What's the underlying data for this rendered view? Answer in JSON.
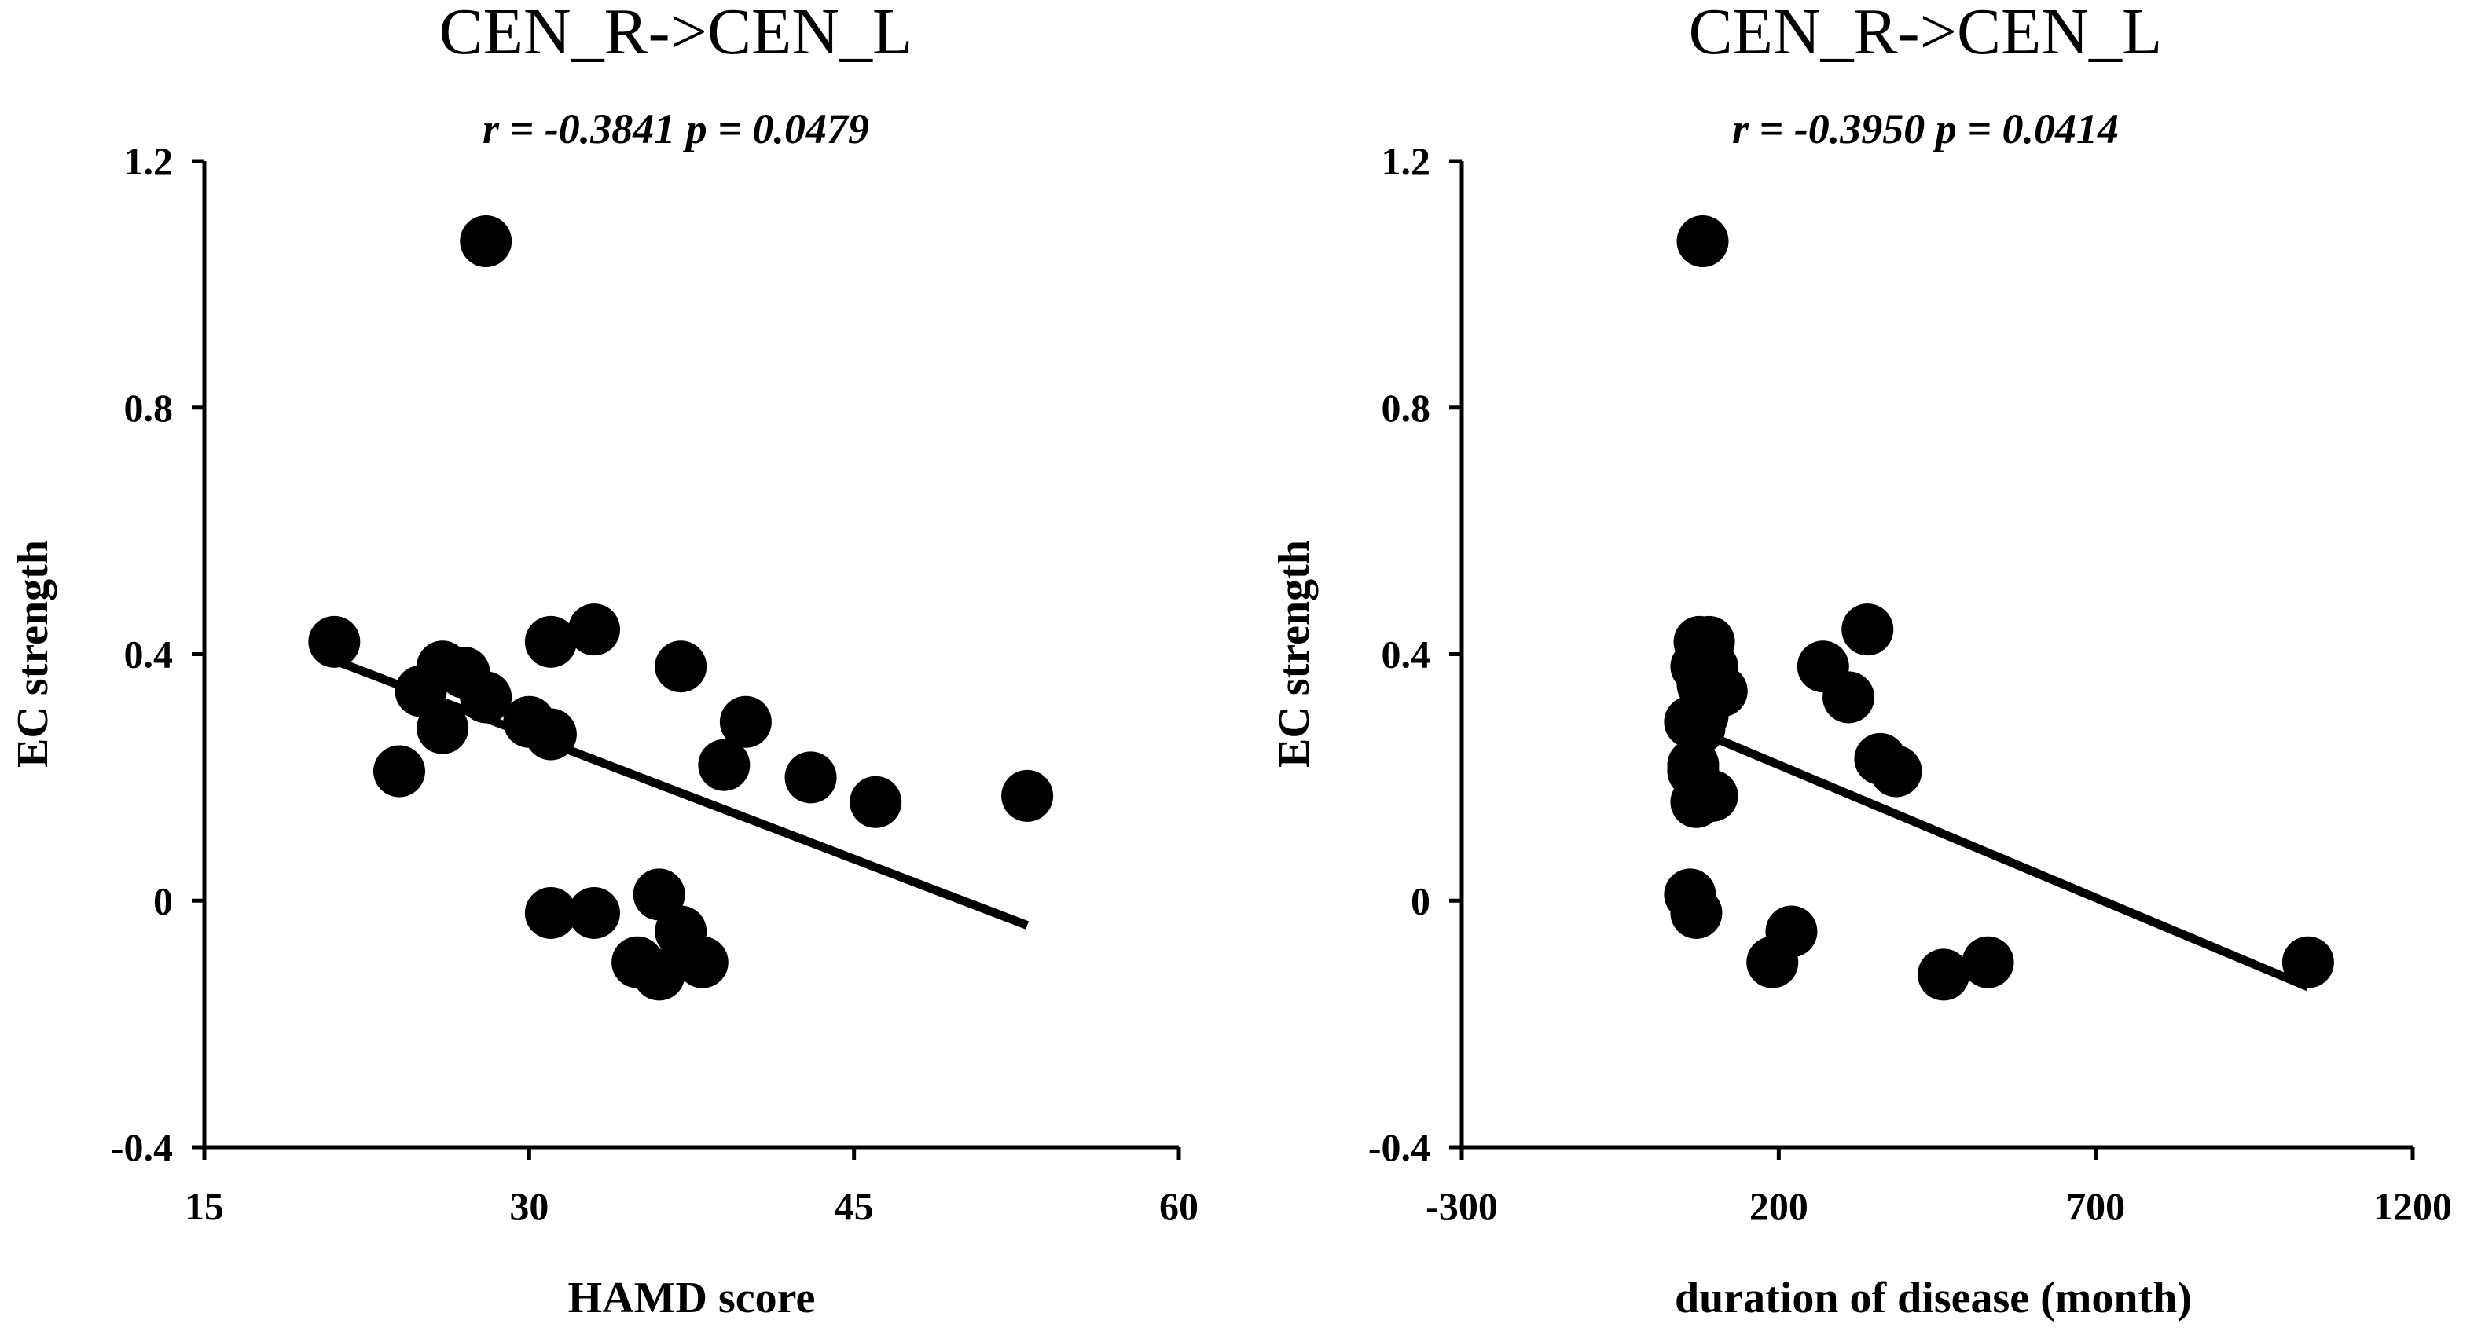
{
  "chart_data": [
    {
      "type": "scatter",
      "title": "CEN_R->CEN_L",
      "subtitle": "r = -0.3841  p = 0.0479",
      "xlabel": "HAMD score",
      "ylabel": "EC strength",
      "xlim": [
        15,
        60
      ],
      "ylim": [
        -0.4,
        1.2
      ],
      "xticks": [
        "15",
        "30",
        "45",
        "60"
      ],
      "yticks": [
        "-0.4",
        "0",
        "0.4",
        "0.8",
        "1.2"
      ],
      "grid": false,
      "x": [
        21,
        28,
        24,
        25,
        26,
        27,
        28,
        26,
        30,
        31,
        31,
        33,
        37,
        40,
        39,
        43,
        46,
        53,
        31,
        33,
        36,
        37,
        35,
        36,
        38
      ],
      "y": [
        0.42,
        1.07,
        0.21,
        0.34,
        0.38,
        0.37,
        0.33,
        0.28,
        0.29,
        0.27,
        0.42,
        0.44,
        0.38,
        0.29,
        0.22,
        0.2,
        0.16,
        0.17,
        -0.02,
        -0.02,
        0.01,
        -0.05,
        -0.1,
        -0.12,
        -0.1
      ],
      "fit_line": {
        "x": [
          21,
          53
        ],
        "y": [
          0.39,
          -0.04
        ]
      }
    },
    {
      "type": "scatter",
      "title": "CEN_R->CEN_L",
      "subtitle": "r = -0.3950  p = 0.0414",
      "xlabel": "duration of disease (month)",
      "ylabel": "EC strength",
      "xlim": [
        -300,
        1200
      ],
      "ylim": [
        -0.4,
        1.2
      ],
      "xticks": [
        "-300",
        "200",
        "700",
        "1200"
      ],
      "yticks": [
        "-0.4",
        "0",
        "0.4",
        "0.8",
        "1.2"
      ],
      "grid": false,
      "x": [
        80,
        75,
        90,
        70,
        95,
        60,
        110,
        65,
        70,
        75,
        65,
        80,
        95,
        60,
        70,
        80,
        270,
        310,
        340,
        360,
        385,
        460,
        530,
        1035,
        190,
        220
      ],
      "y": [
        1.07,
        0.42,
        0.42,
        0.38,
        0.38,
        0.29,
        0.34,
        0.21,
        0.16,
        0.28,
        0.22,
        0.3,
        0.17,
        0.01,
        -0.02,
        0.35,
        0.38,
        0.33,
        0.44,
        0.23,
        0.21,
        -0.12,
        -0.1,
        -0.1,
        -0.1,
        -0.05
      ],
      "fit_line": {
        "x": [
          85,
          1035
        ],
        "y": [
          0.27,
          -0.14
        ]
      }
    }
  ]
}
